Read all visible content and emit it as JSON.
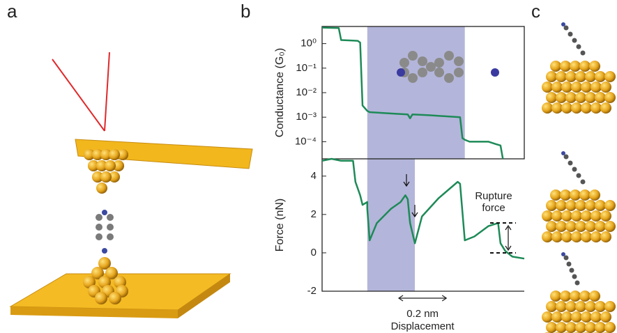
{
  "panel_labels": [
    "a",
    "b",
    "c"
  ],
  "chart_data": [
    {
      "type": "line",
      "ylabel": "Conductance (G₀)",
      "log_y": true,
      "color": "#1d8a57",
      "shade_color": "#a7a8d4",
      "shaded": [
        0.19,
        0.6
      ],
      "xlim": [
        0,
        0.85
      ],
      "ylim": [
        2e-05,
        5
      ],
      "yticks": [
        {
          "value": 1,
          "label": "10⁰"
        },
        {
          "value": 0.1,
          "label": "10⁻¹"
        },
        {
          "value": 0.01,
          "label": "10⁻²"
        },
        {
          "value": 0.001,
          "label": "10⁻³"
        },
        {
          "value": 0.0001,
          "label": "10⁻⁴"
        }
      ],
      "x": [
        0,
        0.07,
        0.08,
        0.15,
        0.16,
        0.17,
        0.19,
        0.2,
        0.3,
        0.36,
        0.37,
        0.38,
        0.45,
        0.58,
        0.59,
        0.6,
        0.62,
        0.7,
        0.73,
        0.75,
        0.76
      ],
      "values": [
        4.5,
        4.3,
        1.4,
        1.3,
        1.1,
        0.003,
        0.0018,
        0.0016,
        0.0014,
        0.0013,
        0.0009,
        0.0013,
        0.0012,
        0.001,
        0.00014,
        0.00012,
        0.0001,
        0.0001,
        8e-05,
        7e-05,
        2e-05
      ]
    },
    {
      "type": "line",
      "ylabel": "Force (nN)",
      "color": "#1d8a57",
      "shade_color": "#a7a8d4",
      "shaded": [
        0.19,
        0.39
      ],
      "xlim": [
        0,
        0.85
      ],
      "ylim": [
        -2,
        4.9
      ],
      "yticks": [
        4,
        2,
        0,
        -2
      ],
      "x": [
        0,
        0.04,
        0.08,
        0.13,
        0.14,
        0.16,
        0.17,
        0.19,
        0.19,
        0.2,
        0.23,
        0.29,
        0.33,
        0.35,
        0.36,
        0.37,
        0.39,
        0.42,
        0.49,
        0.57,
        0.58,
        0.6,
        0.64,
        0.7,
        0.74,
        0.75,
        0.77,
        0.8,
        0.85
      ],
      "values": [
        4.8,
        4.9,
        4.8,
        4.8,
        3.7,
        3.0,
        2.5,
        2.65,
        2.3,
        0.65,
        1.55,
        2.3,
        2.65,
        3.0,
        2.8,
        1.55,
        0.5,
        1.9,
        2.85,
        3.7,
        3.6,
        0.65,
        0.85,
        1.4,
        1.55,
        0.5,
        0.1,
        -0.2,
        -0.3
      ],
      "scale_bar": {
        "length": 0.2,
        "label": "0.2 nm"
      },
      "xlabel": "Displacement",
      "annotation": [
        "Rupture",
        "force"
      ]
    }
  ]
}
